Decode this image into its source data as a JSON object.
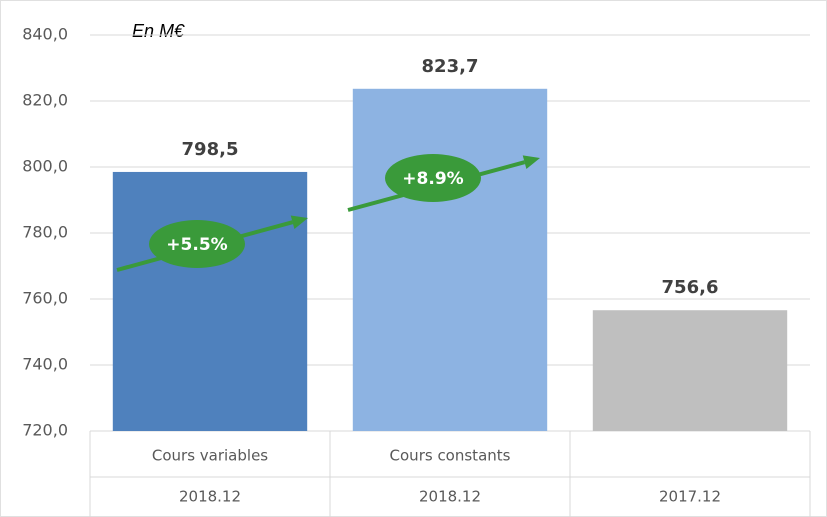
{
  "chart_data": {
    "type": "bar",
    "unit_note": "En M€",
    "categories": [
      "Cours variables",
      "Cours constants",
      null
    ],
    "periods": [
      "2018.12",
      "2018.12",
      "2017.12"
    ],
    "values": [
      798.5,
      823.7,
      756.6
    ],
    "value_labels": [
      "798,5",
      "823,7",
      "756,6"
    ],
    "colors": [
      "#4f81bd",
      "#8db3e2",
      "#bfbfbf"
    ],
    "ylim": [
      720,
      840
    ],
    "yticks": [
      {
        "value": 720,
        "label": "720,0"
      },
      {
        "value": 740,
        "label": "740,0"
      },
      {
        "value": 760,
        "label": "760,0"
      },
      {
        "value": 780,
        "label": "780,0"
      },
      {
        "value": 800,
        "label": "800,0"
      },
      {
        "value": 820,
        "label": "820,0"
      },
      {
        "value": 840,
        "label": "840,0"
      }
    ],
    "grid": true,
    "annotations": [
      {
        "text": "+5.5%",
        "color": "#3a9a3a"
      },
      {
        "text": "+8.9%",
        "color": "#3a9a3a"
      }
    ]
  }
}
